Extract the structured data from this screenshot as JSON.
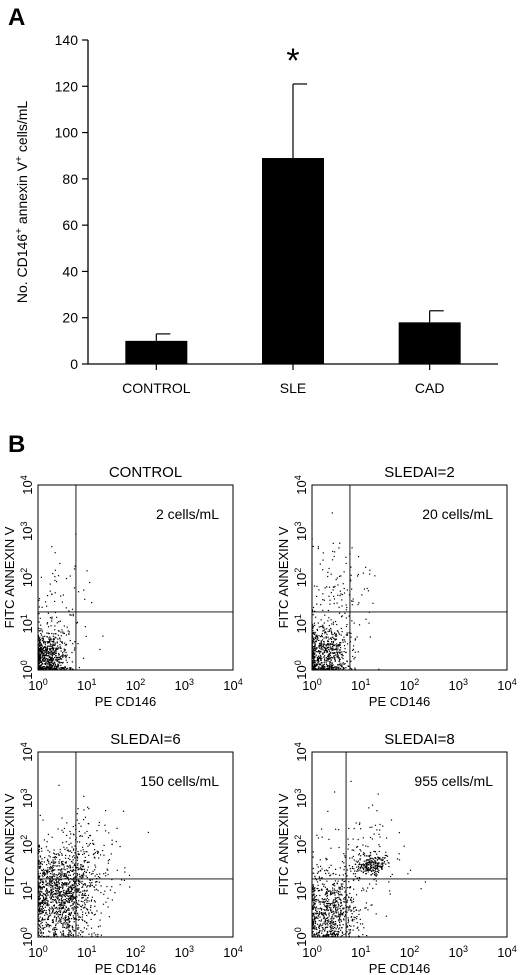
{
  "panel_a": {
    "label": "A",
    "ylabel_main": "No. CD146",
    "ylabel_sup1": "+",
    "ylabel_mid": " annexin V",
    "ylabel_sup2": "+",
    "ylabel_end": " cells/mL",
    "significance_marker": "*"
  },
  "panel_b": {
    "label": "B",
    "plots": [
      {
        "title": "CONTROL",
        "count_label": "2 cells/mL"
      },
      {
        "title": "SLEDAI=2",
        "count_label": "20 cells/mL"
      },
      {
        "title": "SLEDAI=6",
        "count_label": "150 cells/mL"
      },
      {
        "title": "SLEDAI=8",
        "count_label": "955 cells/mL"
      }
    ],
    "xlabel": "PE CD146",
    "ylabel": "FITC ANNEXIN V",
    "tick_base": "10",
    "tick_exponents": [
      "0",
      "1",
      "2",
      "3",
      "4"
    ]
  },
  "colors": {
    "bar": "#000000",
    "axis": "#000000",
    "gate": "#000000",
    "dots": "#000000"
  },
  "chart_data": [
    {
      "type": "bar",
      "categories": [
        "CONTROL",
        "SLE",
        "CAD"
      ],
      "values": [
        10,
        89,
        18
      ],
      "errors": [
        3,
        32,
        5
      ],
      "ylim": [
        0,
        140
      ],
      "yticks": [
        0,
        20,
        40,
        60,
        80,
        100,
        120,
        140
      ],
      "significant": [
        false,
        true,
        false
      ],
      "grid": false
    },
    {
      "type": "scatter",
      "title": "CONTROL",
      "xlabel": "PE CD146",
      "ylabel": "FITC ANNEXIN V",
      "xscale": "log",
      "yscale": "log",
      "xlim": [
        1,
        10000
      ],
      "ylim": [
        1,
        10000
      ],
      "gate": {
        "x": 6,
        "y": 18
      },
      "annotation": "2 cells/mL"
    },
    {
      "type": "scatter",
      "title": "SLEDAI=2",
      "xlabel": "PE CD146",
      "ylabel": "FITC ANNEXIN V",
      "xscale": "log",
      "yscale": "log",
      "xlim": [
        1,
        10000
      ],
      "ylim": [
        1,
        10000
      ],
      "gate": {
        "x": 6,
        "y": 18
      },
      "annotation": "20 cells/mL"
    },
    {
      "type": "scatter",
      "title": "SLEDAI=6",
      "xlabel": "PE CD146",
      "ylabel": "FITC ANNEXIN V",
      "xscale": "log",
      "yscale": "log",
      "xlim": [
        1,
        10000
      ],
      "ylim": [
        1,
        10000
      ],
      "gate": {
        "x": 6,
        "y": 18
      },
      "annotation": "150 cells/mL"
    },
    {
      "type": "scatter",
      "title": "SLEDAI=8",
      "xlabel": "PE CD146",
      "ylabel": "FITC ANNEXIN V",
      "xscale": "log",
      "yscale": "log",
      "xlim": [
        1,
        10000
      ],
      "ylim": [
        1,
        10000
      ],
      "gate": {
        "x": 5,
        "y": 18
      },
      "annotation": "955 cells/mL"
    }
  ]
}
